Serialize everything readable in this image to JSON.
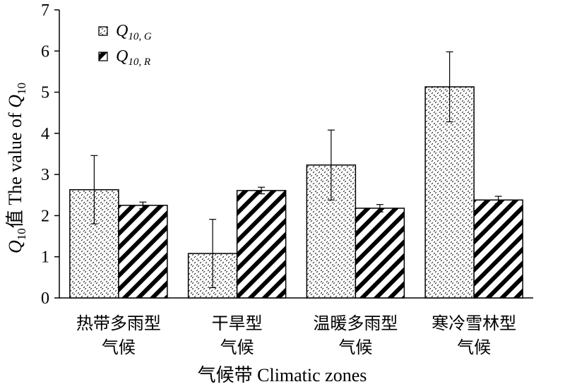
{
  "chart_data": {
    "type": "bar",
    "categories": [
      {
        "line1": "热带多雨型",
        "line2": "气候"
      },
      {
        "line1": "干旱型",
        "line2": "气候"
      },
      {
        "line1": "温暖多雨型",
        "line2": "气候"
      },
      {
        "line1": "寒冷雪林型",
        "line2": "气候"
      }
    ],
    "series": [
      {
        "name": "Q10, G",
        "name_main": "Q",
        "name_sub": "10, G",
        "pattern": "dotted-hatch",
        "values": [
          2.63,
          1.08,
          3.23,
          5.13
        ],
        "errors": [
          0.83,
          0.83,
          0.85,
          0.85
        ]
      },
      {
        "name": "Q10, R",
        "name_main": "Q",
        "name_sub": "10, R",
        "pattern": "diagonal-hatch",
        "values": [
          2.25,
          2.61,
          2.18,
          2.38
        ],
        "errors": [
          0.08,
          0.08,
          0.09,
          0.09
        ]
      }
    ],
    "xlabel": "气候带  Climatic zones",
    "ylabel": {
      "prefix_main": "Q",
      "prefix_sub": "10",
      "prefix_tail": "值  The value of ",
      "suffix_main": "Q",
      "suffix_sub": "10"
    },
    "yticks": [
      0,
      1,
      2,
      3,
      4,
      5,
      6,
      7
    ],
    "ylim": [
      0,
      7
    ],
    "legend_position": "top-left",
    "grid": false
  }
}
